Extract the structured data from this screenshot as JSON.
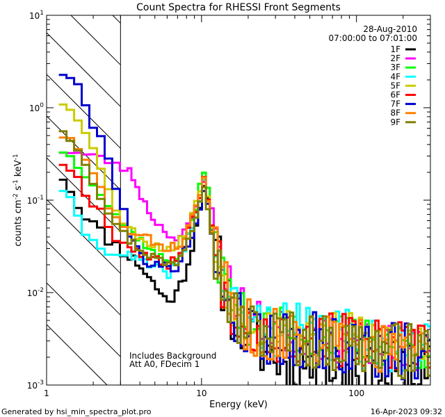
{
  "chart_data": {
    "type": "line",
    "title": "Count Spectra for RHESSI Front Segments",
    "xlabel": "Energy (keV)",
    "ylabel": "counts cm-2 s-1 keV-1",
    "xscale": "log",
    "yscale": "log",
    "xlim": [
      1,
      300
    ],
    "ylim": [
      0.001,
      10
    ],
    "x_tick_labels": [
      "1",
      "10",
      "100"
    ],
    "y_tick_labels": [
      "10-3",
      "10-2",
      "10-1",
      "100",
      "101"
    ],
    "legend_position": "top-right",
    "date": "28-Aug-2010",
    "time_range": "07:00:00 to 07:01:00",
    "shaded_region_upper_keV": 3,
    "annotations": [
      "Includes Background",
      "Att A0, FDecim 1"
    ],
    "footer_left": "Generated by hsi_min_spectra_plot.pro",
    "footer_right": "16-Apr-2023 09:32",
    "series": [
      {
        "name": "1F",
        "color": "#000000",
        "anchors": [
          [
            1.2,
            0.21
          ],
          [
            1.4,
            0.14
          ],
          [
            1.6,
            0.085
          ],
          [
            1.8,
            0.07
          ],
          [
            2.0,
            0.055
          ],
          [
            2.4,
            0.04
          ],
          [
            3.0,
            0.03
          ],
          [
            4.0,
            0.02
          ],
          [
            5.0,
            0.012
          ],
          [
            6.0,
            0.008
          ],
          [
            7.0,
            0.01
          ],
          [
            8.0,
            0.018
          ],
          [
            9.0,
            0.04
          ],
          [
            10.0,
            0.12
          ],
          [
            10.5,
            0.16
          ],
          [
            11.0,
            0.09
          ],
          [
            12.0,
            0.03
          ],
          [
            14.0,
            0.012
          ],
          [
            17.0,
            0.005
          ],
          [
            22.0,
            0.003
          ],
          [
            30.0,
            0.002
          ],
          [
            45.0,
            0.0018
          ],
          [
            70.0,
            0.0016
          ],
          [
            110.0,
            0.0015
          ],
          [
            180.0,
            0.0013
          ],
          [
            300.0,
            0.0012
          ]
        ],
        "jitter": 0.14,
        "seed": 11
      },
      {
        "name": "2F",
        "color": "#ff00ff",
        "anchors": [
          [
            1.2,
            0.35
          ],
          [
            1.6,
            0.32
          ],
          [
            2.0,
            0.3
          ],
          [
            2.6,
            0.26
          ],
          [
            3.0,
            0.23
          ],
          [
            3.5,
            0.2
          ],
          [
            4.0,
            0.12
          ],
          [
            4.5,
            0.08
          ],
          [
            5.0,
            0.06
          ],
          [
            6.0,
            0.045
          ],
          [
            7.0,
            0.036
          ],
          [
            7.5,
            0.04
          ],
          [
            8.5,
            0.06
          ],
          [
            9.5,
            0.09
          ],
          [
            10.0,
            0.13
          ],
          [
            10.5,
            0.19
          ],
          [
            11.0,
            0.14
          ],
          [
            12.0,
            0.055
          ],
          [
            14.0,
            0.018
          ],
          [
            17.0,
            0.008
          ],
          [
            22.0,
            0.005
          ],
          [
            30.0,
            0.004
          ],
          [
            45.0,
            0.0035
          ],
          [
            70.0,
            0.003
          ],
          [
            110.0,
            0.0028
          ],
          [
            180.0,
            0.0025
          ],
          [
            300.0,
            0.0023
          ]
        ],
        "jitter": 0.09,
        "seed": 23
      },
      {
        "name": "3F",
        "color": "#00ff00",
        "anchors": [
          [
            1.2,
            0.38
          ],
          [
            1.6,
            0.24
          ],
          [
            2.0,
            0.16
          ],
          [
            2.4,
            0.1
          ],
          [
            3.0,
            0.06
          ],
          [
            4.0,
            0.038
          ],
          [
            5.0,
            0.026
          ],
          [
            6.0,
            0.022
          ],
          [
            7.0,
            0.024
          ],
          [
            8.0,
            0.04
          ],
          [
            9.0,
            0.07
          ],
          [
            10.0,
            0.16
          ],
          [
            10.5,
            0.22
          ],
          [
            11.0,
            0.12
          ],
          [
            12.0,
            0.04
          ],
          [
            14.0,
            0.014
          ],
          [
            17.0,
            0.006
          ],
          [
            22.0,
            0.0045
          ],
          [
            30.0,
            0.004
          ],
          [
            45.0,
            0.0036
          ],
          [
            70.0,
            0.0033
          ],
          [
            110.0,
            0.003
          ],
          [
            180.0,
            0.0027
          ],
          [
            300.0,
            0.0025
          ]
        ],
        "jitter": 0.1,
        "seed": 37
      },
      {
        "name": "4F",
        "color": "#00ffff",
        "anchors": [
          [
            1.2,
            0.16
          ],
          [
            1.4,
            0.1
          ],
          [
            1.6,
            0.06
          ],
          [
            1.8,
            0.045
          ],
          [
            2.0,
            0.035
          ],
          [
            2.4,
            0.03
          ],
          [
            3.0,
            0.027
          ],
          [
            4.0,
            0.022
          ],
          [
            5.0,
            0.018
          ],
          [
            6.0,
            0.016
          ],
          [
            7.0,
            0.02
          ],
          [
            8.0,
            0.035
          ],
          [
            9.0,
            0.06
          ],
          [
            10.0,
            0.13
          ],
          [
            10.5,
            0.17
          ],
          [
            11.0,
            0.1
          ],
          [
            12.0,
            0.035
          ],
          [
            14.0,
            0.013
          ],
          [
            17.0,
            0.006
          ],
          [
            22.0,
            0.0045
          ],
          [
            30.0,
            0.004
          ],
          [
            45.0,
            0.0037
          ],
          [
            70.0,
            0.0034
          ],
          [
            110.0,
            0.003
          ],
          [
            180.0,
            0.0028
          ],
          [
            300.0,
            0.0026
          ]
        ],
        "jitter": 0.12,
        "seed": 41
      },
      {
        "name": "5F",
        "color": "#cccc00",
        "anchors": [
          [
            1.2,
            1.2
          ],
          [
            1.5,
            1.0
          ],
          [
            1.8,
            0.5
          ],
          [
            2.2,
            0.25
          ],
          [
            2.6,
            0.12
          ],
          [
            3.0,
            0.06
          ],
          [
            4.0,
            0.04
          ],
          [
            5.0,
            0.032
          ],
          [
            6.0,
            0.03
          ],
          [
            7.0,
            0.032
          ],
          [
            8.0,
            0.05
          ],
          [
            9.0,
            0.08
          ],
          [
            10.0,
            0.15
          ],
          [
            10.5,
            0.19
          ],
          [
            11.0,
            0.1
          ],
          [
            12.0,
            0.035
          ],
          [
            14.0,
            0.013
          ],
          [
            17.0,
            0.006
          ],
          [
            22.0,
            0.0048
          ],
          [
            30.0,
            0.0042
          ],
          [
            45.0,
            0.0038
          ],
          [
            70.0,
            0.0035
          ],
          [
            110.0,
            0.0032
          ],
          [
            180.0,
            0.003
          ],
          [
            300.0,
            0.0028
          ]
        ],
        "jitter": 0.1,
        "seed": 53
      },
      {
        "name": "6F",
        "color": "#ff0000",
        "anchors": [
          [
            1.2,
            0.28
          ],
          [
            1.5,
            0.2
          ],
          [
            1.8,
            0.12
          ],
          [
            2.2,
            0.08
          ],
          [
            2.6,
            0.05
          ],
          [
            3.0,
            0.035
          ],
          [
            4.0,
            0.028
          ],
          [
            5.0,
            0.022
          ],
          [
            6.0,
            0.02
          ],
          [
            7.0,
            0.024
          ],
          [
            8.0,
            0.04
          ],
          [
            9.0,
            0.07
          ],
          [
            10.0,
            0.14
          ],
          [
            10.5,
            0.18
          ],
          [
            11.0,
            0.1
          ],
          [
            12.0,
            0.035
          ],
          [
            14.0,
            0.012
          ],
          [
            17.0,
            0.0055
          ],
          [
            22.0,
            0.0042
          ],
          [
            30.0,
            0.0036
          ],
          [
            45.0,
            0.0032
          ],
          [
            70.0,
            0.003
          ],
          [
            110.0,
            0.0028
          ],
          [
            180.0,
            0.0025
          ],
          [
            300.0,
            0.0023
          ]
        ],
        "jitter": 0.12,
        "seed": 67
      },
      {
        "name": "7F",
        "color": "#0000cc",
        "anchors": [
          [
            1.2,
            2.6
          ],
          [
            1.5,
            2.0
          ],
          [
            1.8,
            1.0
          ],
          [
            2.2,
            0.5
          ],
          [
            2.6,
            0.25
          ],
          [
            3.0,
            0.1
          ],
          [
            3.5,
            0.04
          ],
          [
            4.0,
            0.025
          ],
          [
            5.0,
            0.02
          ],
          [
            6.0,
            0.018
          ],
          [
            7.0,
            0.02
          ],
          [
            8.0,
            0.03
          ],
          [
            9.0,
            0.05
          ],
          [
            10.0,
            0.1
          ],
          [
            10.5,
            0.14
          ],
          [
            11.0,
            0.08
          ],
          [
            12.0,
            0.028
          ],
          [
            14.0,
            0.011
          ],
          [
            17.0,
            0.005
          ],
          [
            22.0,
            0.0038
          ],
          [
            30.0,
            0.0033
          ],
          [
            45.0,
            0.003
          ],
          [
            70.0,
            0.0027
          ],
          [
            110.0,
            0.0025
          ],
          [
            180.0,
            0.0022
          ],
          [
            300.0,
            0.002
          ]
        ],
        "jitter": 0.13,
        "seed": 79
      },
      {
        "name": "8F",
        "color": "#ff8000",
        "anchors": [
          [
            1.2,
            0.55
          ],
          [
            1.5,
            0.4
          ],
          [
            1.8,
            0.25
          ],
          [
            2.2,
            0.14
          ],
          [
            2.6,
            0.08
          ],
          [
            3.0,
            0.05
          ],
          [
            4.0,
            0.04
          ],
          [
            5.0,
            0.035
          ],
          [
            6.0,
            0.03
          ],
          [
            7.0,
            0.032
          ],
          [
            8.0,
            0.045
          ],
          [
            9.0,
            0.07
          ],
          [
            10.0,
            0.14
          ],
          [
            10.5,
            0.18
          ],
          [
            11.0,
            0.1
          ],
          [
            12.0,
            0.035
          ],
          [
            14.0,
            0.012
          ],
          [
            17.0,
            0.0055
          ],
          [
            22.0,
            0.0042
          ],
          [
            30.0,
            0.0037
          ],
          [
            45.0,
            0.0033
          ],
          [
            70.0,
            0.003
          ],
          [
            110.0,
            0.0028
          ],
          [
            180.0,
            0.0025
          ],
          [
            300.0,
            0.0023
          ]
        ],
        "jitter": 0.12,
        "seed": 83
      },
      {
        "name": "9F",
        "color": "#808000",
        "anchors": [
          [
            1.2,
            0.65
          ],
          [
            1.5,
            0.45
          ],
          [
            1.8,
            0.25
          ],
          [
            2.2,
            0.12
          ],
          [
            2.6,
            0.07
          ],
          [
            3.0,
            0.045
          ],
          [
            4.0,
            0.03
          ],
          [
            5.0,
            0.024
          ],
          [
            6.0,
            0.02
          ],
          [
            7.0,
            0.022
          ],
          [
            8.0,
            0.035
          ],
          [
            9.0,
            0.06
          ],
          [
            10.0,
            0.13
          ],
          [
            10.5,
            0.17
          ],
          [
            11.0,
            0.09
          ],
          [
            12.0,
            0.032
          ],
          [
            14.0,
            0.011
          ],
          [
            17.0,
            0.005
          ],
          [
            22.0,
            0.004
          ],
          [
            30.0,
            0.0035
          ],
          [
            45.0,
            0.0031
          ],
          [
            70.0,
            0.0028
          ],
          [
            110.0,
            0.0026
          ],
          [
            180.0,
            0.0024
          ],
          [
            300.0,
            0.0022
          ]
        ],
        "jitter": 0.12,
        "seed": 97
      }
    ]
  }
}
